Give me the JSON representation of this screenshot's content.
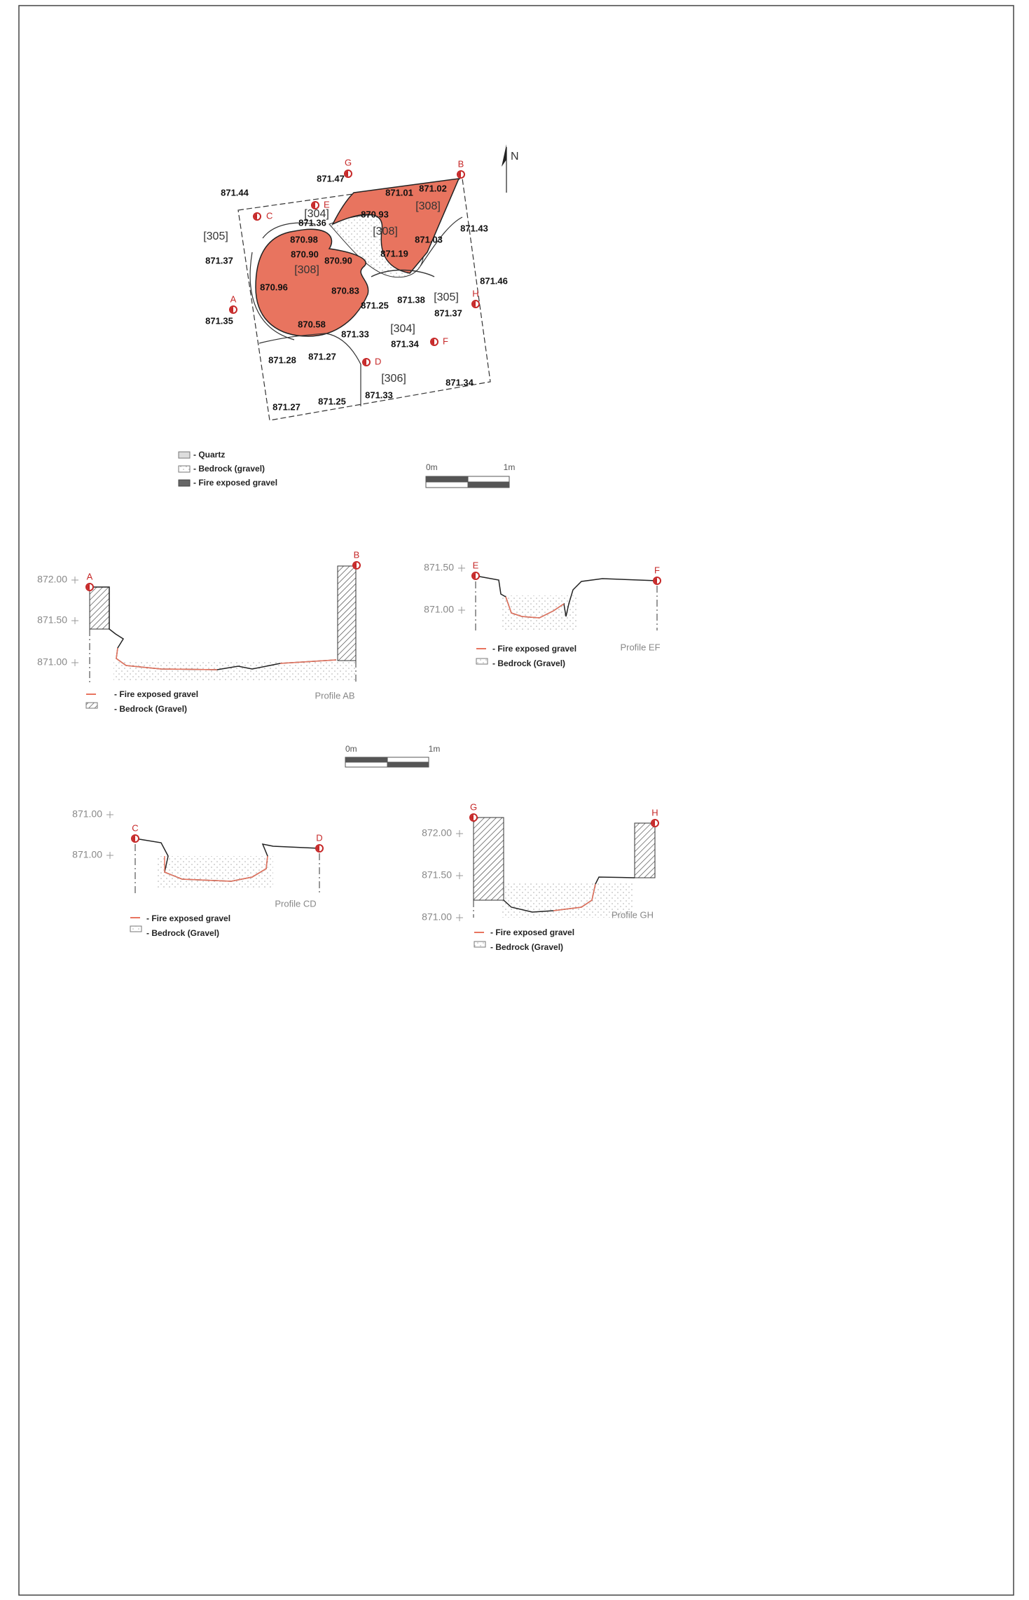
{
  "plan": {
    "north": "N",
    "elevations": [
      "871.47",
      "871.44",
      "871.01",
      "871.02",
      "870.93",
      "871.36",
      "870.98",
      "871.03",
      "871.43",
      "871.37",
      "870.90",
      "870.90",
      "871.19",
      "870.96",
      "870.83",
      "871.46",
      "871.25",
      "871.38",
      "871.37",
      "871.35",
      "870.58",
      "871.33",
      "871.34",
      "871.28",
      "871.27",
      "871.34",
      "871.27",
      "871.25",
      "871.33"
    ],
    "contexts": [
      "[304]",
      "[305]",
      "[308]",
      "[308]",
      "[308]",
      "[305]",
      "[304]",
      "[306]"
    ],
    "points": [
      "G",
      "B",
      "C",
      "E",
      "A",
      "H",
      "F",
      "D"
    ],
    "legend": [
      "- Quartz",
      "- Bedrock (gravel)",
      "- Fire exposed gravel"
    ],
    "scale": [
      "0m",
      "1m"
    ]
  },
  "profiles": [
    {
      "title": "Profile AB",
      "levels": [
        "872.00",
        "871.50",
        "871.00"
      ],
      "points": [
        "A",
        "B"
      ],
      "legend": [
        "- Fire exposed gravel",
        "- Bedrock (Gravel)"
      ]
    },
    {
      "title": "Profile EF",
      "levels": [
        "871.50",
        "871.00"
      ],
      "points": [
        "E",
        "F"
      ],
      "legend": [
        "- Fire exposed gravel",
        "- Bedrock (Gravel)"
      ]
    },
    {
      "title": "Profile CD",
      "levels": [
        "871.00",
        "871.00"
      ],
      "points": [
        "C",
        "D"
      ],
      "legend": [
        "- Fire exposed gravel",
        "- Bedrock (Gravel)"
      ]
    },
    {
      "title": "Profile GH",
      "levels": [
        "872.00",
        "871.50",
        "871.00"
      ],
      "points": [
        "G",
        "H"
      ],
      "legend": [
        "- Fire exposed gravel",
        "- Bedrock (Gravel)"
      ]
    }
  ],
  "scale": [
    "0m",
    "1m"
  ]
}
